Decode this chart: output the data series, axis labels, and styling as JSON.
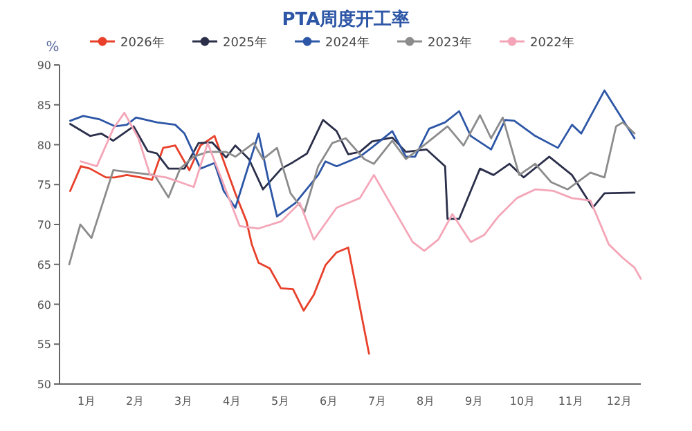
{
  "chart_data": {
    "type": "line",
    "title": "PTA周度开工率",
    "ylabel": "%",
    "legend": "top",
    "grid": false,
    "xlim": [
      0,
      12
    ],
    "xticks": [
      {
        "value": 0.5,
        "label": "1月"
      },
      {
        "value": 1.5,
        "label": "2月"
      },
      {
        "value": 2.5,
        "label": "3月"
      },
      {
        "value": 3.5,
        "label": "4月"
      },
      {
        "value": 4.5,
        "label": "5月"
      },
      {
        "value": 5.5,
        "label": "6月"
      },
      {
        "value": 6.5,
        "label": "7月"
      },
      {
        "value": 7.5,
        "label": "8月"
      },
      {
        "value": 8.5,
        "label": "9月"
      },
      {
        "value": 9.5,
        "label": "10月"
      },
      {
        "value": 10.5,
        "label": "11月"
      },
      {
        "value": 11.5,
        "label": "12月"
      }
    ],
    "ylim": [
      50,
      90
    ],
    "yticks": [
      50,
      55,
      60,
      65,
      70,
      75,
      80,
      85,
      90
    ],
    "series": [
      {
        "name": "2026年",
        "color": "#e8402a",
        "x": [
          0.22,
          0.44,
          0.63,
          0.96,
          1.14,
          1.39,
          1.68,
          1.91,
          2.14,
          2.39,
          2.68,
          2.91,
          3.2,
          3.63,
          3.86,
          3.97,
          4.11,
          4.34,
          4.57,
          4.82,
          5.04,
          5.25,
          5.49,
          5.72,
          5.96,
          6.39
        ],
        "values": [
          74.2,
          77.3,
          77.0,
          75.9,
          75.9,
          76.2,
          75.9,
          75.6,
          79.6,
          79.9,
          76.8,
          79.9,
          81.1,
          73.9,
          70.4,
          67.5,
          65.2,
          64.5,
          62.0,
          61.9,
          59.2,
          61.2,
          64.9,
          66.5,
          67.1,
          53.8
        ]
      },
      {
        "name": "2025年",
        "color": "#2b2f4a",
        "x": [
          0.22,
          0.63,
          0.86,
          1.11,
          1.53,
          1.82,
          2.01,
          2.25,
          2.58,
          2.87,
          3.15,
          3.44,
          3.63,
          3.91,
          4.2,
          4.58,
          4.82,
          5.11,
          5.44,
          5.72,
          5.96,
          6.2,
          6.45,
          6.87,
          7.15,
          7.58,
          7.96,
          8.01,
          8.25,
          8.68,
          8.96,
          9.29,
          9.58,
          10.11,
          10.58,
          11.01,
          11.25,
          11.87
        ],
        "values": [
          82.6,
          81.1,
          81.4,
          80.5,
          82.3,
          79.2,
          78.9,
          77.0,
          77.0,
          80.2,
          80.3,
          78.4,
          79.9,
          78.2,
          74.4,
          77.0,
          77.8,
          78.9,
          83.1,
          81.7,
          78.8,
          79.1,
          80.4,
          80.9,
          79.1,
          79.4,
          77.3,
          70.7,
          70.7,
          77.0,
          76.2,
          77.6,
          75.9,
          78.5,
          76.2,
          72.1,
          73.9,
          74.0
        ]
      },
      {
        "name": "2024年",
        "color": "#2d56a6",
        "x": [
          0.22,
          0.49,
          0.82,
          1.15,
          1.39,
          1.58,
          2.01,
          2.39,
          2.58,
          2.77,
          2.91,
          3.2,
          3.39,
          3.63,
          4.11,
          4.29,
          4.49,
          4.87,
          5.34,
          5.49,
          5.72,
          6.2,
          6.44,
          6.87,
          7.15,
          7.34,
          7.63,
          7.96,
          8.25,
          8.49,
          8.91,
          9.2,
          9.39,
          9.82,
          10.29,
          10.58,
          10.77,
          11.25,
          11.87
        ],
        "values": [
          83.0,
          83.6,
          83.2,
          82.3,
          82.5,
          83.4,
          82.8,
          82.5,
          81.4,
          78.9,
          77.0,
          77.7,
          74.2,
          72.1,
          81.4,
          76.2,
          71.0,
          72.7,
          76.2,
          77.9,
          77.3,
          78.5,
          79.6,
          81.7,
          78.5,
          78.5,
          82.0,
          82.8,
          84.2,
          81.1,
          79.4,
          83.1,
          83.0,
          81.1,
          79.6,
          82.5,
          81.4,
          86.8,
          80.8
        ]
      },
      {
        "name": "2023年",
        "color": "#8c8c8c",
        "x": [
          0.2,
          0.43,
          0.66,
          1.11,
          1.53,
          1.96,
          2.25,
          2.49,
          2.77,
          3.06,
          3.44,
          3.63,
          4.01,
          4.2,
          4.49,
          4.77,
          5.06,
          5.34,
          5.63,
          5.91,
          6.29,
          6.49,
          6.87,
          7.15,
          7.58,
          8.01,
          8.34,
          8.68,
          8.91,
          9.15,
          9.49,
          9.82,
          10.15,
          10.49,
          10.96,
          11.25,
          11.49,
          11.63,
          11.87
        ],
        "values": [
          65.0,
          70.0,
          68.3,
          76.8,
          76.5,
          76.2,
          73.4,
          77.0,
          78.5,
          79.1,
          79.1,
          78.5,
          80.2,
          78.2,
          79.6,
          73.9,
          71.6,
          77.3,
          80.2,
          80.8,
          78.2,
          77.6,
          80.5,
          78.2,
          80.2,
          82.3,
          79.9,
          83.7,
          80.8,
          83.4,
          76.2,
          77.6,
          75.3,
          74.4,
          76.5,
          75.9,
          82.3,
          82.8,
          81.4
        ]
      },
      {
        "name": "2022年",
        "color": "#f4a6b8",
        "x": [
          0.44,
          0.77,
          1.11,
          1.34,
          1.63,
          1.87,
          2.2,
          2.49,
          2.77,
          3.06,
          3.72,
          4.11,
          4.58,
          4.96,
          5.25,
          5.72,
          6.2,
          6.49,
          7.29,
          7.53,
          7.82,
          8.11,
          8.49,
          8.77,
          9.06,
          9.44,
          9.82,
          10.2,
          10.58,
          10.96,
          11.34,
          11.63,
          11.87,
          12.0
        ],
        "values": [
          77.9,
          77.3,
          82.0,
          84.0,
          80.8,
          76.2,
          75.9,
          75.3,
          74.7,
          80.2,
          69.8,
          69.5,
          70.4,
          72.7,
          68.1,
          72.1,
          73.3,
          76.2,
          67.8,
          66.7,
          68.1,
          71.3,
          67.8,
          68.7,
          71.0,
          73.3,
          74.4,
          74.2,
          73.3,
          73.0,
          67.5,
          65.8,
          64.6,
          63.2
        ]
      }
    ]
  }
}
